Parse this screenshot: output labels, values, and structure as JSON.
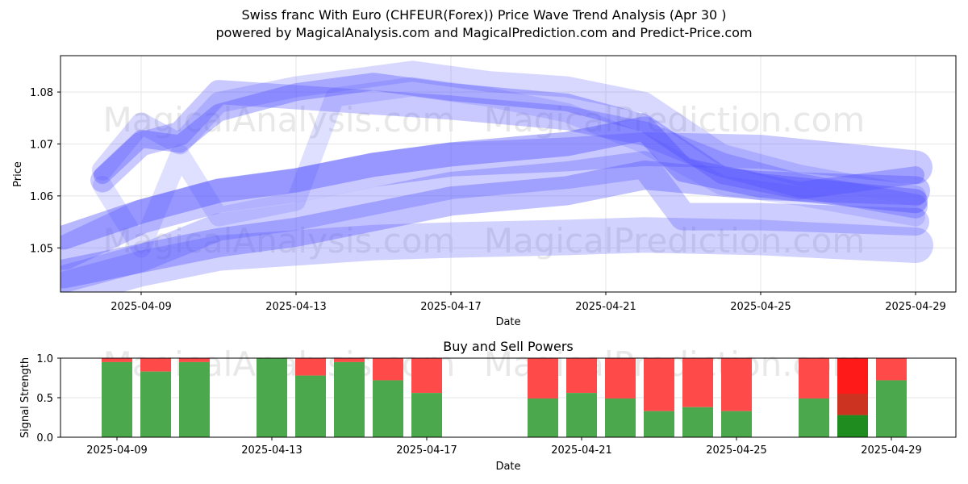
{
  "title": "Swiss franc With Euro (CHFEUR(Forex)) Price Wave Trend Analysis (Apr 30 )",
  "subtitle": "powered by MagicalAnalysis.com and MagicalPrediction.com and Predict-Price.com",
  "watermarks": [
    "MagicalAnalysis.com",
    "MagicalPrediction.com"
  ],
  "colors": {
    "wave": "#4d4dff",
    "buy": "#4ca84c",
    "sell": "#ff4a4a",
    "buy_strong": "#1e8c1e",
    "sell_strong": "#ff1a1a",
    "sell_mid": "#cc3320"
  },
  "chart_data": [
    {
      "type": "line",
      "title": "",
      "xlabel": "Date",
      "ylabel": "Price",
      "ylim": [
        1.0415,
        1.087
      ],
      "x_ticks": [
        "2025-04-09",
        "2025-04-13",
        "2025-04-17",
        "2025-04-21",
        "2025-04-25",
        "2025-04-29"
      ],
      "y_ticks": [
        "1.05",
        "1.06",
        "1.07",
        "1.08"
      ],
      "grid": true,
      "series": [
        {
          "points": [
            [
              "2025-04-07",
              1.049
            ],
            [
              "2025-04-09",
              1.056
            ],
            [
              "2025-04-11",
              1.06
            ],
            [
              "2025-04-13",
              1.062
            ],
            [
              "2025-04-15",
              1.065
            ],
            [
              "2025-04-17",
              1.067
            ],
            [
              "2025-04-20",
              1.068
            ],
            [
              "2025-04-22",
              1.069
            ],
            [
              "2025-04-25",
              1.0685
            ],
            [
              "2025-04-29",
              1.0655
            ]
          ]
        },
        {
          "points": [
            [
              "2025-04-07",
              1.045
            ],
            [
              "2025-04-09",
              1.048
            ],
            [
              "2025-04-11",
              1.051
            ],
            [
              "2025-04-13",
              1.053
            ],
            [
              "2025-04-15",
              1.056
            ],
            [
              "2025-04-17",
              1.059
            ],
            [
              "2025-04-20",
              1.061
            ],
            [
              "2025-04-22",
              1.064
            ],
            [
              "2025-04-25",
              1.062
            ],
            [
              "2025-04-29",
              1.061
            ]
          ]
        },
        {
          "points": [
            [
              "2025-04-07",
              1.042
            ],
            [
              "2025-04-09",
              1.046
            ],
            [
              "2025-04-11",
              1.049
            ],
            [
              "2025-04-13",
              1.05
            ],
            [
              "2025-04-15",
              1.051
            ],
            [
              "2025-04-17",
              1.0515
            ],
            [
              "2025-04-20",
              1.052
            ],
            [
              "2025-04-22",
              1.0525
            ],
            [
              "2025-04-25",
              1.052
            ],
            [
              "2025-04-29",
              1.0505
            ]
          ]
        },
        {
          "points": [
            [
              "2025-04-07",
              1.052
            ],
            [
              "2025-04-09",
              1.057
            ],
            [
              "2025-04-11",
              1.061
            ],
            [
              "2025-04-13",
              1.063
            ],
            [
              "2025-04-15",
              1.066
            ],
            [
              "2025-04-17",
              1.068
            ],
            [
              "2025-04-20",
              1.07
            ],
            [
              "2025-04-22",
              1.073
            ],
            [
              "2025-04-23",
              1.065
            ],
            [
              "2025-04-25",
              1.062
            ],
            [
              "2025-04-29",
              1.059
            ]
          ]
        },
        {
          "points": [
            [
              "2025-04-08",
              1.064
            ],
            [
              "2025-04-09",
              1.071
            ],
            [
              "2025-04-10",
              1.07
            ],
            [
              "2025-04-11",
              1.076
            ],
            [
              "2025-04-13",
              1.08
            ],
            [
              "2025-04-15",
              1.082
            ],
            [
              "2025-04-17",
              1.08
            ],
            [
              "2025-04-20",
              1.078
            ],
            [
              "2025-04-22",
              1.074
            ],
            [
              "2025-04-24",
              1.064
            ],
            [
              "2025-04-26",
              1.061
            ],
            [
              "2025-04-29",
              1.064
            ]
          ]
        },
        {
          "points": [
            [
              "2025-04-08",
              1.065
            ],
            [
              "2025-04-09",
              1.074
            ],
            [
              "2025-04-10",
              1.07
            ],
            [
              "2025-04-11",
              1.078
            ],
            [
              "2025-04-13",
              1.081
            ],
            [
              "2025-04-16",
              1.084
            ],
            [
              "2025-04-18",
              1.082
            ],
            [
              "2025-04-20",
              1.081
            ],
            [
              "2025-04-22",
              1.078
            ],
            [
              "2025-04-24",
              1.068
            ],
            [
              "2025-04-26",
              1.064
            ],
            [
              "2025-04-29",
              1.06
            ]
          ]
        },
        {
          "points": [
            [
              "2025-04-08",
              1.063
            ],
            [
              "2025-04-09",
              1.07
            ],
            [
              "2025-04-10",
              1.072
            ],
            [
              "2025-04-11",
              1.08
            ],
            [
              "2025-04-13",
              1.079
            ],
            [
              "2025-04-15",
              1.078
            ],
            [
              "2025-04-17",
              1.077
            ],
            [
              "2025-04-20",
              1.075
            ],
            [
              "2025-04-22",
              1.072
            ],
            [
              "2025-04-24",
              1.066
            ],
            [
              "2025-04-26",
              1.062
            ],
            [
              "2025-04-29",
              1.058
            ]
          ]
        },
        {
          "points": [
            [
              "2025-04-08",
              1.062
            ],
            [
              "2025-04-09",
              1.05
            ],
            [
              "2025-04-10",
              1.068
            ],
            [
              "2025-04-11",
              1.056
            ],
            [
              "2025-04-13",
              1.059
            ],
            [
              "2025-04-14",
              1.079
            ],
            [
              "2025-04-16",
              1.081
            ],
            [
              "2025-04-18",
              1.079
            ],
            [
              "2025-04-20",
              1.076
            ],
            [
              "2025-04-22",
              1.07
            ],
            [
              "2025-04-24",
              1.062
            ],
            [
              "2025-04-26",
              1.06
            ],
            [
              "2025-04-29",
              1.056
            ]
          ]
        },
        {
          "points": [
            [
              "2025-04-07",
              1.044
            ],
            [
              "2025-04-09",
              1.048
            ],
            [
              "2025-04-11",
              1.054
            ],
            [
              "2025-04-13",
              1.056
            ],
            [
              "2025-04-15",
              1.059
            ],
            [
              "2025-04-17",
              1.062
            ],
            [
              "2025-04-20",
              1.064
            ],
            [
              "2025-04-22",
              1.066
            ],
            [
              "2025-04-23",
              1.056
            ],
            [
              "2025-04-25",
              1.056
            ],
            [
              "2025-04-29",
              1.055
            ]
          ]
        }
      ]
    },
    {
      "type": "bar",
      "title": "Buy and Sell Powers",
      "xlabel": "Date",
      "ylabel": "Signal Strength",
      "ylim": [
        0,
        1.0
      ],
      "x_ticks": [
        "2025-04-09",
        "2025-04-13",
        "2025-04-17",
        "2025-04-21",
        "2025-04-25",
        "2025-04-29"
      ],
      "y_ticks": [
        "0.0",
        "0.5",
        "1.0"
      ],
      "bars": [
        {
          "date": "2025-04-09",
          "buy": 0.95
        },
        {
          "date": "2025-04-10",
          "buy": 0.83
        },
        {
          "date": "2025-04-11",
          "buy": 0.95
        },
        {
          "date": "2025-04-13",
          "buy": 1.0
        },
        {
          "date": "2025-04-14",
          "buy": 0.78
        },
        {
          "date": "2025-04-15",
          "buy": 0.95
        },
        {
          "date": "2025-04-16",
          "buy": 0.72
        },
        {
          "date": "2025-04-17",
          "buy": 0.56
        },
        {
          "date": "2025-04-20",
          "buy": 0.49
        },
        {
          "date": "2025-04-21",
          "buy": 0.56
        },
        {
          "date": "2025-04-22",
          "buy": 0.49
        },
        {
          "date": "2025-04-23",
          "buy": 0.33
        },
        {
          "date": "2025-04-24",
          "buy": 0.38
        },
        {
          "date": "2025-04-25",
          "buy": 0.33
        },
        {
          "date": "2025-04-27",
          "buy": 0.49
        },
        {
          "date": "2025-04-28",
          "buy": 0.28,
          "mid": 0.55,
          "strong": true
        },
        {
          "date": "2025-04-29",
          "buy": 0.72
        }
      ]
    }
  ]
}
